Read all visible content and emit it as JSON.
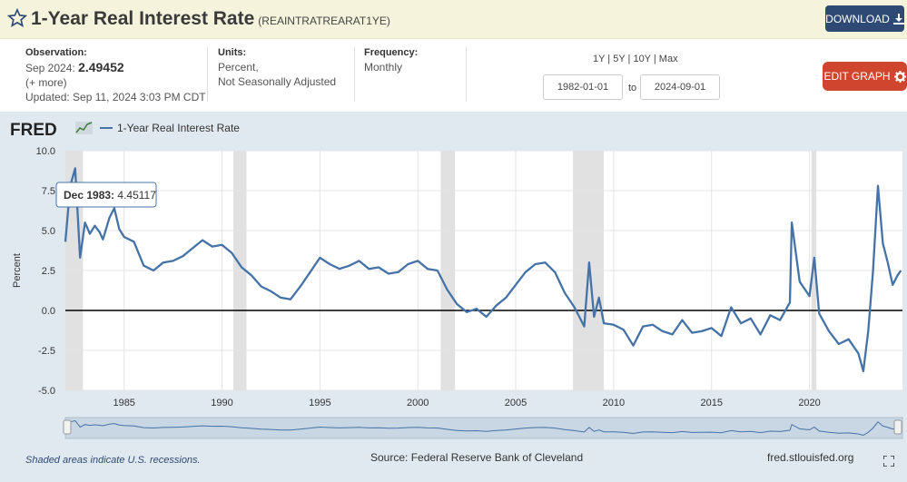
{
  "header": {
    "title": "1-Year Real Interest Rate",
    "series_id": "(REAINTRATREARAT1YE)",
    "download_label": "DOWNLOAD"
  },
  "meta": {
    "observation_label": "Observation:",
    "observation_date": "Sep 2024:",
    "observation_value": "2.49452",
    "more": "(+ more)",
    "updated": "Updated: Sep 11, 2024 3:03 PM CDT",
    "units_label": "Units:",
    "units_line1": "Percent,",
    "units_line2": "Not Seasonally Adjusted",
    "frequency_label": "Frequency:",
    "frequency_value": "Monthly"
  },
  "range": {
    "links": "1Y | 5Y | 10Y | Max",
    "start": "1982-01-01",
    "to_label": "to",
    "end": "2024-09-01"
  },
  "edit_label": "EDIT GRAPH",
  "brand": "FRED",
  "tooltip": {
    "date": "Dec 1983:",
    "value": "4.45117"
  },
  "footer": {
    "recessions": "Shaded areas indicate U.S. recessions.",
    "source": "Source: Federal Reserve Bank of Cleveland",
    "site": "fred.stlouisfed.org"
  },
  "colors": {
    "line": "#4572a7",
    "recession": "#e1e1e1",
    "button_dark": "#2e4a74",
    "button_red": "#d0452d"
  },
  "chart_data": {
    "type": "line",
    "series": [
      {
        "name": "1-Year Real Interest Rate",
        "x": [
          1982.0,
          1982.25,
          1982.5,
          1982.75,
          1983.0,
          1983.25,
          1983.5,
          1983.75,
          1983.92,
          1984.25,
          1984.5,
          1984.75,
          1985.0,
          1985.5,
          1986.0,
          1986.5,
          1987.0,
          1987.5,
          1988.0,
          1988.5,
          1989.0,
          1989.5,
          1990.0,
          1990.5,
          1991.0,
          1991.5,
          1992.0,
          1992.5,
          1993.0,
          1993.5,
          1994.0,
          1994.5,
          1995.0,
          1995.5,
          1996.0,
          1996.5,
          1997.0,
          1997.5,
          1998.0,
          1998.5,
          1999.0,
          1999.5,
          2000.0,
          2000.5,
          2001.0,
          2001.5,
          2002.0,
          2002.5,
          2003.0,
          2003.5,
          2004.0,
          2004.5,
          2005.0,
          2005.5,
          2006.0,
          2006.5,
          2007.0,
          2007.5,
          2008.0,
          2008.5,
          2008.75,
          2009.0,
          2009.25,
          2009.5,
          2010.0,
          2010.5,
          2011.0,
          2011.5,
          2012.0,
          2012.5,
          2013.0,
          2013.5,
          2014.0,
          2014.5,
          2015.0,
          2015.5,
          2016.0,
          2016.5,
          2017.0,
          2017.5,
          2018.0,
          2018.5,
          2019.0,
          2019.1,
          2019.5,
          2020.0,
          2020.25,
          2020.5,
          2021.0,
          2021.5,
          2022.0,
          2022.5,
          2022.75,
          2023.0,
          2023.25,
          2023.5,
          2023.75,
          2024.0,
          2024.25,
          2024.5,
          2024.67
        ],
        "values": [
          4.3,
          7.8,
          8.9,
          3.3,
          5.5,
          4.8,
          5.3,
          4.9,
          4.45117,
          5.8,
          6.4,
          5.1,
          4.6,
          4.3,
          2.8,
          2.5,
          3.0,
          3.1,
          3.4,
          3.9,
          4.4,
          4.0,
          4.1,
          3.6,
          2.7,
          2.2,
          1.5,
          1.2,
          0.8,
          0.7,
          1.5,
          2.4,
          3.3,
          2.9,
          2.6,
          2.8,
          3.1,
          2.6,
          2.7,
          2.3,
          2.4,
          2.9,
          3.1,
          2.6,
          2.5,
          1.3,
          0.4,
          -0.1,
          0.1,
          -0.4,
          0.3,
          0.8,
          1.6,
          2.4,
          2.9,
          3.0,
          2.4,
          1.1,
          0.2,
          -1.0,
          3.0,
          -0.4,
          0.8,
          -0.8,
          -0.9,
          -1.2,
          -2.2,
          -1.0,
          -0.9,
          -1.3,
          -1.5,
          -0.6,
          -1.4,
          -1.3,
          -1.1,
          -1.6,
          0.2,
          -0.8,
          -0.5,
          -1.5,
          -0.3,
          -0.6,
          0.5,
          5.5,
          1.8,
          0.9,
          3.3,
          -0.2,
          -1.3,
          -2.1,
          -1.8,
          -2.7,
          -3.8,
          -1.3,
          2.5,
          7.8,
          4.2,
          3.0,
          1.6,
          2.2,
          2.49452
        ]
      }
    ],
    "recessions": [
      [
        1981.5,
        1982.9
      ],
      [
        1990.58,
        1991.25
      ],
      [
        2001.17,
        2001.9
      ],
      [
        2007.92,
        2009.5
      ],
      [
        2020.1,
        2020.35
      ]
    ],
    "xlim": [
      1982.0,
      2024.75
    ],
    "ylim": [
      -5.0,
      10.0
    ],
    "xticks": [
      "1985",
      "1990",
      "1995",
      "2000",
      "2005",
      "2010",
      "2015",
      "2020"
    ],
    "yticks": [
      "-5.0",
      "-2.5",
      "0.0",
      "2.5",
      "5.0",
      "7.5",
      "10.0"
    ],
    "ylabel": "Percent",
    "legend": "1-Year Real Interest Rate",
    "grid": true
  }
}
